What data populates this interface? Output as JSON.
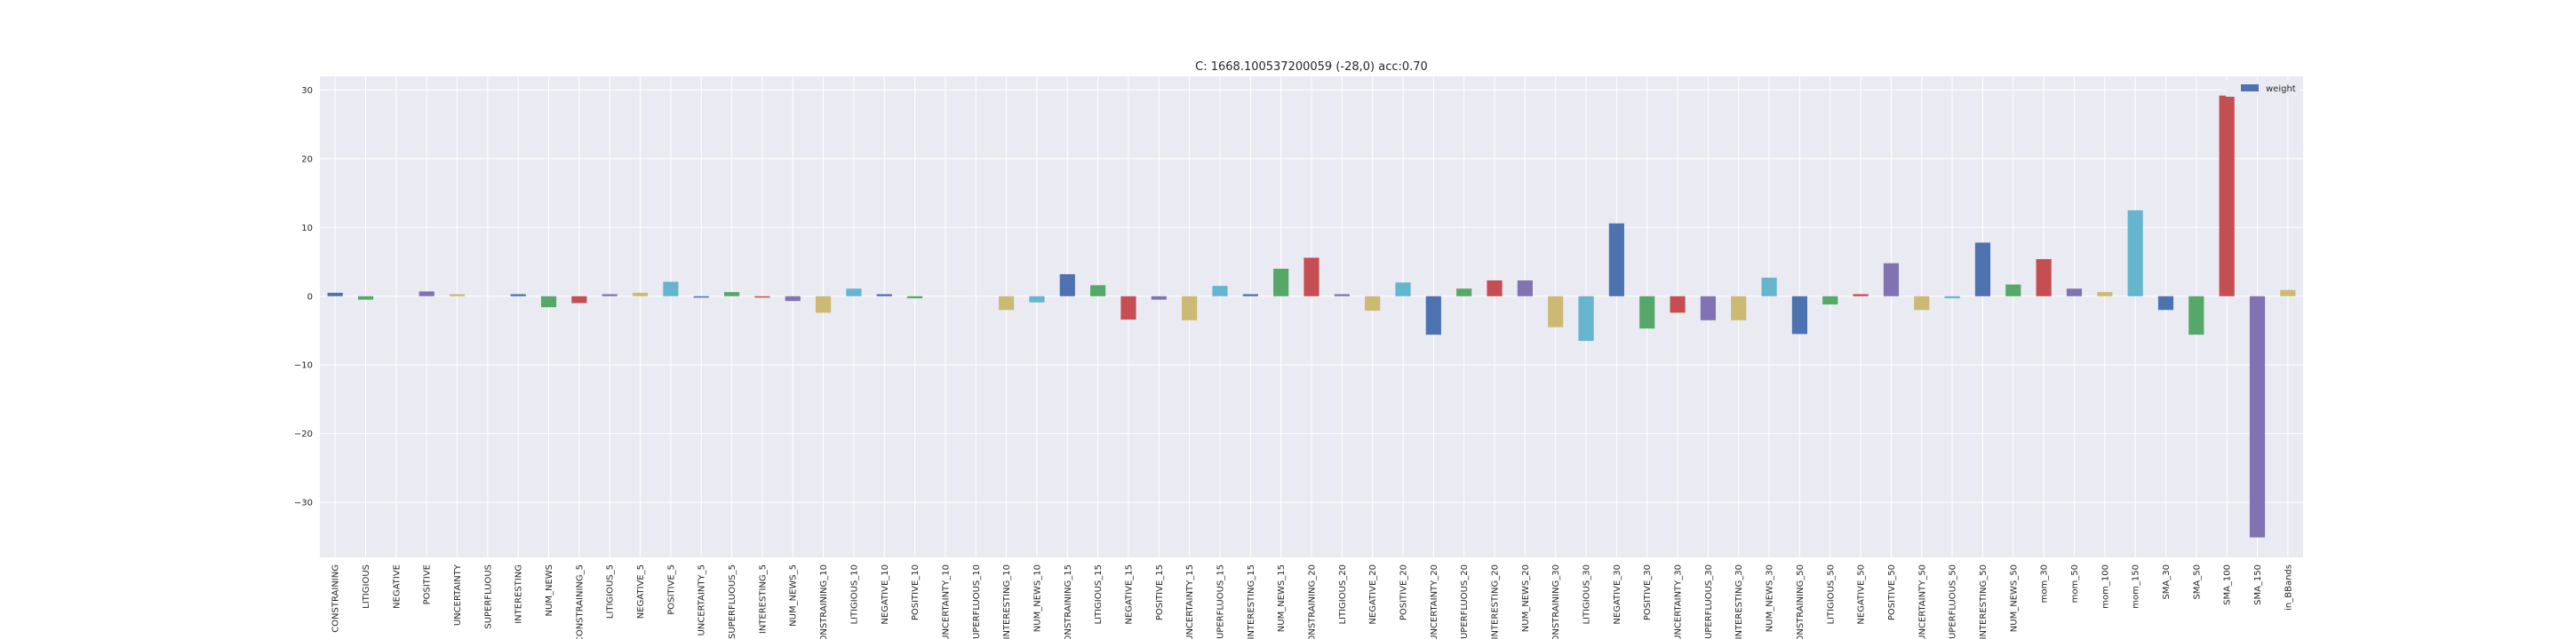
{
  "chart_data": {
    "type": "bar",
    "title": "C: 1668.100537200059 (-28,0) acc:0.70",
    "xlabel": "",
    "ylabel": "",
    "ylim": [
      -38,
      32
    ],
    "yticks": [
      -30,
      -20,
      -10,
      0,
      10,
      20,
      30
    ],
    "ytick_labels": [
      "−30",
      "−20",
      "−10",
      "0",
      "10",
      "20",
      "30"
    ],
    "grid": true,
    "legend": {
      "position": "top-right",
      "entries": [
        "weight"
      ]
    },
    "palette": [
      "#4c72b0",
      "#55a868",
      "#c44e52",
      "#8172b2",
      "#ccb974",
      "#64b5cd"
    ],
    "background": "#eaeaf2",
    "categories": [
      "CONSTRAINING",
      "LITIGIOUS",
      "NEGATIVE",
      "POSITIVE",
      "UNCERTAINTY",
      "SUPERFLUOUS",
      "INTERESTING",
      "NUM_NEWS",
      "CONSTRAINING_5",
      "LITIGIOUS_5",
      "NEGATIVE_5",
      "POSITIVE_5",
      "UNCERTAINTY_5",
      "SUPERFLUOUS_5",
      "INTERESTING_5",
      "NUM_NEWS_5",
      "CONSTRAINING_10",
      "LITIGIOUS_10",
      "NEGATIVE_10",
      "POSITIVE_10",
      "UNCERTAINTY_10",
      "SUPERFLUOUS_10",
      "INTERESTING_10",
      "NUM_NEWS_10",
      "CONSTRAINING_15",
      "LITIGIOUS_15",
      "NEGATIVE_15",
      "POSITIVE_15",
      "UNCERTAINTY_15",
      "SUPERFLUOUS_15",
      "INTERESTING_15",
      "NUM_NEWS_15",
      "CONSTRAINING_20",
      "LITIGIOUS_20",
      "NEGATIVE_20",
      "POSITIVE_20",
      "UNCERTAINTY_20",
      "SUPERFLUOUS_20",
      "INTERESTING_20",
      "NUM_NEWS_20",
      "CONSTRAINING_30",
      "LITIGIOUS_30",
      "NEGATIVE_30",
      "POSITIVE_30",
      "UNCERTAINTY_30",
      "SUPERFLUOUS_30",
      "INTERESTING_30",
      "NUM_NEWS_30",
      "CONSTRAINING_50",
      "LITIGIOUS_50",
      "NEGATIVE_50",
      "POSITIVE_50",
      "UNCERTAINTY_50",
      "SUPERFLUOUS_50",
      "INTERESTING_50",
      "NUM_NEWS_50",
      "mom_30",
      "mom_50",
      "mom_100",
      "mom_150",
      "SMA_30",
      "SMA_50",
      "SMA_100",
      "SMA_150",
      "in_BBands"
    ],
    "series": [
      {
        "name": "weight",
        "values": [
          0.5,
          -0.5,
          0.0,
          0.7,
          0.3,
          0.0,
          0.3,
          -1.6,
          -1.0,
          0.3,
          0.5,
          2.1,
          -0.2,
          0.6,
          -0.2,
          -0.7,
          -2.4,
          1.1,
          0.3,
          -0.3,
          0.0,
          0.0,
          -2.0,
          -0.9,
          3.2,
          1.6,
          -3.4,
          -0.5,
          -3.5,
          1.5,
          0.3,
          4.0,
          5.6,
          0.3,
          -2.1,
          2.0,
          -5.6,
          1.1,
          2.3,
          2.3,
          -4.5,
          -6.5,
          10.6,
          -4.7,
          -2.4,
          -3.5,
          -3.5,
          2.7,
          -5.5,
          -1.2,
          0.3,
          4.8,
          -2.0,
          -0.3,
          7.8,
          1.7,
          5.4,
          1.1,
          0.6,
          12.5,
          -2.0,
          -5.6,
          29.2,
          -35.1,
          0.9
        ]
      }
    ]
  }
}
